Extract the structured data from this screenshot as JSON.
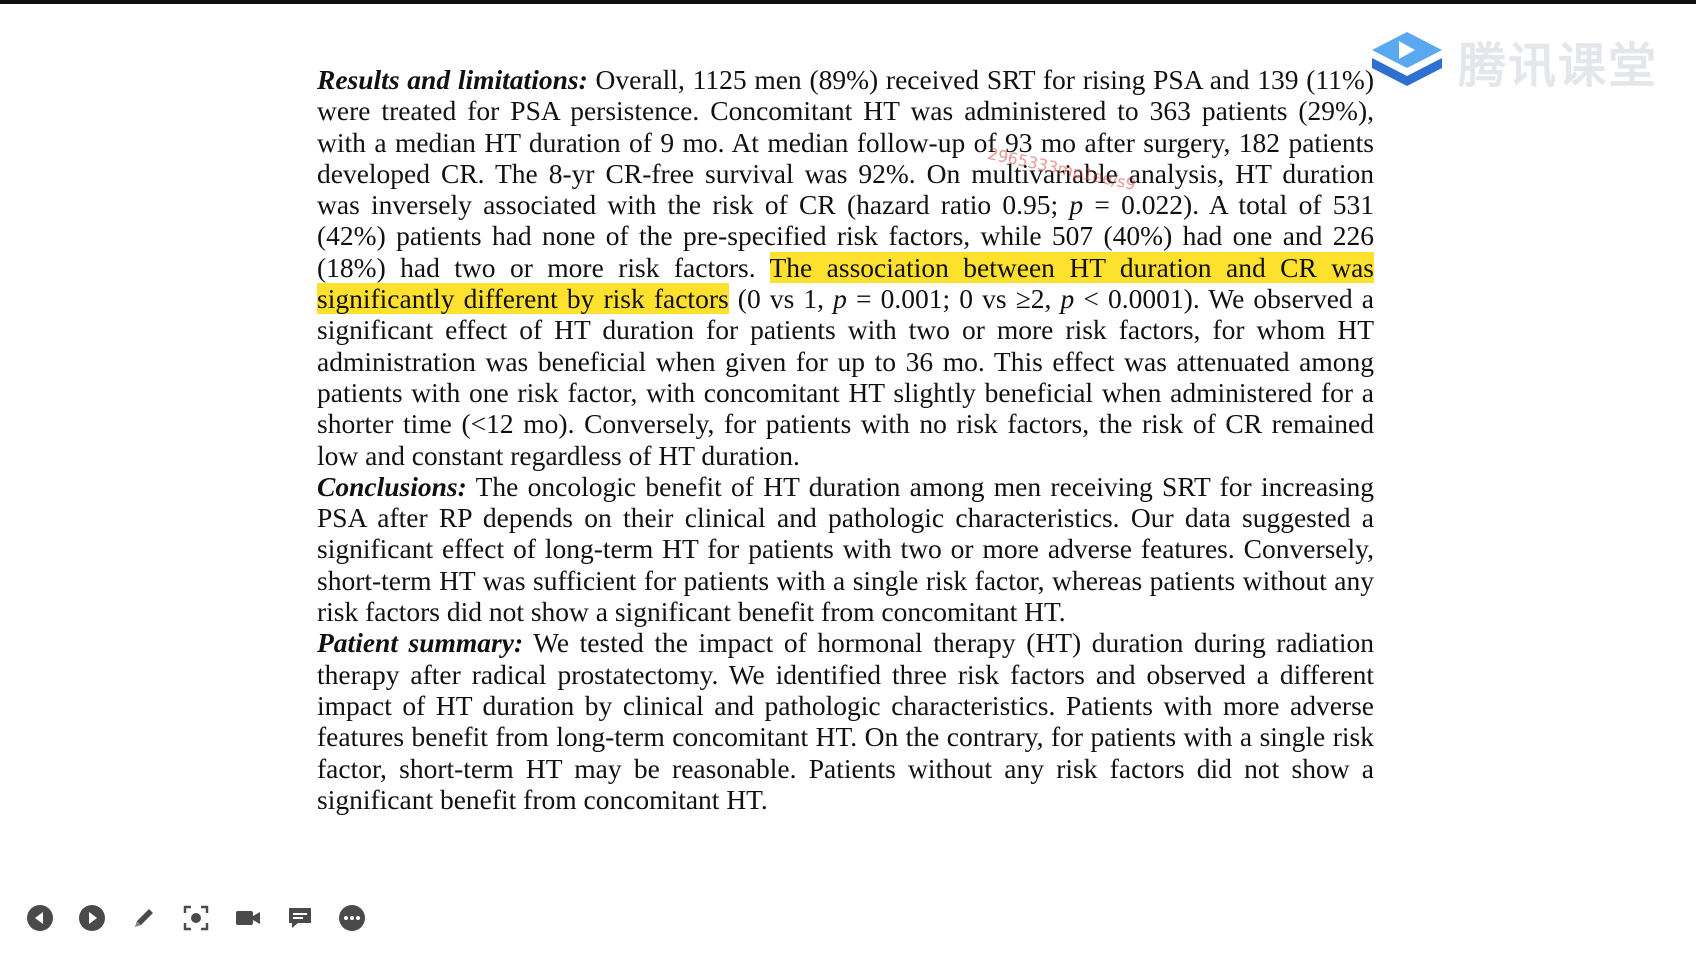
{
  "logo": {
    "text": "腾讯课堂",
    "icon": "tencent-classroom-play-icon"
  },
  "watermark": {
    "text": "2965333mp1ee/s9"
  },
  "abstract": {
    "results": {
      "heading": "Results and limitations:",
      "text_before_highlight": " Overall, 1125 men (89%) received SRT for rising PSA and 139 (11%) were treated for PSA persistence. Concomitant HT was administered to 363 patients (29%), with a median HT duration of 9 mo. At median follow-up of 93 mo after surgery, 182 patients developed CR. The 8-yr CR-free survival was 92%. On multivariable analysis, HT duration was inversely associated with the risk of CR (hazard ratio 0.95; ",
      "p1_label": "p",
      "p1_value": " = 0.022). A total of 531 (42%) patients had none of the pre-specified risk factors, while 507 (40%) had one and 226 (18%) had two or more risk factors. ",
      "highlight": "The association between HT duration and CR was significantly different by risk factors",
      "after_highlight_a": " (0 vs 1, ",
      "p2_label": "p",
      "after_highlight_b": " = 0.001; 0 vs ≥2, ",
      "p3_label": "p",
      "after_highlight_c": " < 0.0001). We observed a significant effect of HT duration for patients with two or more risk factors, for whom HT administration was beneficial when given for up to 36 mo. This effect was attenuated among patients with one risk factor, with concomitant HT slightly beneficial when administered for a shorter time (<12 mo). Conversely, for patients with no risk factors, the risk of CR remained low and constant regardless of HT duration."
    },
    "conclusions": {
      "heading": "Conclusions:",
      "text": " The oncologic benefit of HT duration among men receiving SRT for increasing PSA after RP depends on their clinical and pathologic characteristics. Our data suggested a significant effect of long-term HT for patients with two or more adverse features. Conversely, short-term HT was sufficient for patients with a single risk factor, whereas patients without any risk factors did not show a significant benefit from concomitant HT."
    },
    "summary": {
      "heading": "Patient summary:",
      "text": " We tested the impact of hormonal therapy (HT) duration during radiation therapy after radical prostatectomy. We identified three risk factors and observed a different impact of HT duration by clinical and pathologic characteristics. Patients with more adverse features benefit from long-term concomitant HT. On the contrary, for patients with a single risk factor, short-term HT may be reasonable. Patients without any risk factors did not show a significant benefit from concomitant HT."
    }
  },
  "toolbar": {
    "buttons": [
      {
        "name": "previous-icon"
      },
      {
        "name": "next-icon"
      },
      {
        "name": "pen-icon"
      },
      {
        "name": "screenshot-icon"
      },
      {
        "name": "camera-icon"
      },
      {
        "name": "chat-icon"
      },
      {
        "name": "more-icon"
      }
    ]
  },
  "colors": {
    "highlight": "#fde12d",
    "toolbar_icon": "#4a4a4a",
    "logo_blue": "#2e8de8",
    "logo_text": "#e3e6ea"
  }
}
